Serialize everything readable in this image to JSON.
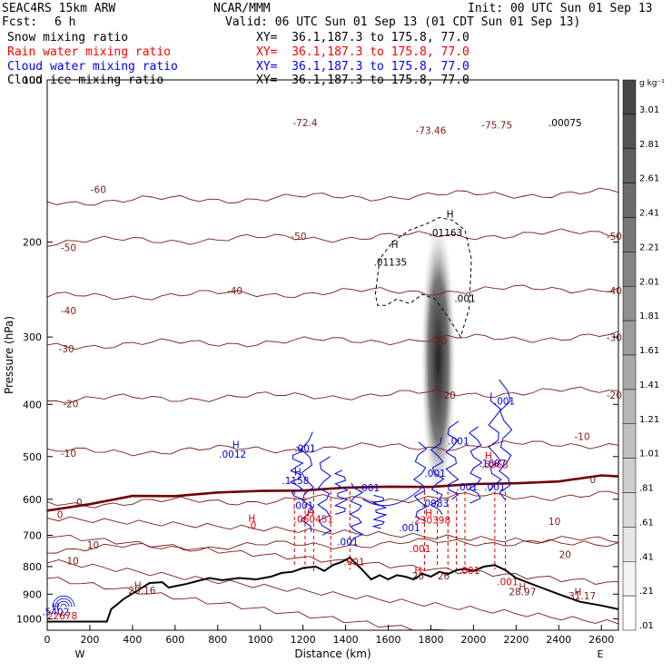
{
  "header": {
    "model": "SEAC4RS 15km ARW",
    "org": "NCAR/MMM",
    "init": "Init: 00 UTC Sun 01 Sep 13",
    "fcst_label": "Fcst:",
    "fcst_value": "6 h",
    "valid": "Valid: 06 UTC Sun 01 Sep 13 (01 CDT Sun 01 Sep 13)"
  },
  "legend_rows": [
    {
      "label": "Snow mixing ratio",
      "xy": "XY=  36.1,187.3 to 175.8, 77.0",
      "color": "#000000"
    },
    {
      "label": "Rain water mixing ratio",
      "xy": "XY=  36.1,187.3 to 175.8, 77.0",
      "color": "#ff0000"
    },
    {
      "label": "Cloud water mixing ratio",
      "xy": "XY=  36.1,187.3 to 175.8, 77.0",
      "color": "#0000ff"
    },
    {
      "label": "Cloud ice mixing ratio",
      "xy": "XY=  36.1,187.3 to 175.8, 77.0",
      "color": "#000000"
    }
  ],
  "colors": {
    "temperature": "#7a1a1a",
    "freezing_level": "#6e0000",
    "terrain": "#000000",
    "rain": "#e00000",
    "cloud_water": "#0000dd",
    "cloud_ice": "#000000"
  },
  "chart_data": {
    "type": "heatmap",
    "xlabel": "Distance (km)",
    "ylabel": "Pressure (hPa)",
    "xlim": [
      0,
      2680
    ],
    "ylim": [
      1050,
      100
    ],
    "y_log": true,
    "x_ticks": [
      "0",
      "200",
      "400",
      "600",
      "800",
      "1000",
      "1200",
      "1400",
      "1600",
      "1800",
      "2000",
      "2200",
      "2400",
      "2600"
    ],
    "y_ticks": [
      "100",
      "200",
      "300",
      "400",
      "500",
      "600",
      "700",
      "800",
      "900",
      "1000"
    ],
    "end_labels": {
      "left": "W",
      "right": "E"
    },
    "colorbar": {
      "unit": "g kg⁻¹",
      "levels": [
        "3.01",
        "2.81",
        "2.61",
        "2.41",
        "2.21",
        "2.01",
        "1.81",
        "1.61",
        "1.41",
        "1.21",
        "1.01",
        ".81",
        ".61",
        ".41",
        ".21",
        ".01"
      ]
    },
    "snow_max": {
      "x": 1835,
      "p": 330,
      "value": 3.0
    },
    "terrain": {
      "x": [
        0,
        280,
        300,
        360,
        420,
        480,
        540,
        570,
        600,
        650,
        700,
        760,
        820,
        900,
        980,
        1050,
        1100,
        1150,
        1200,
        1260,
        1300,
        1340,
        1380,
        1420,
        1470,
        1520,
        1560,
        1600,
        1640,
        1680,
        1720,
        1760,
        1800,
        1840,
        1880,
        1920,
        1960,
        2000,
        2050,
        2100,
        2150,
        2200,
        2300,
        2400,
        2500,
        2600,
        2680
      ],
      "p": [
        1012,
        1012,
        960,
        918,
        888,
        858,
        855,
        875,
        870,
        862,
        852,
        840,
        848,
        840,
        845,
        835,
        822,
        818,
        805,
        800,
        815,
        795,
        785,
        770,
        805,
        845,
        830,
        845,
        830,
        835,
        845,
        825,
        835,
        818,
        826,
        812,
        808,
        815,
        800,
        795,
        812,
        840,
        870,
        900,
        930,
        945,
        960
      ]
    },
    "temperature_isotherms": [
      {
        "label": "-60",
        "p": 165
      },
      {
        "label": "-50",
        "p": 196
      },
      {
        "label": "-40",
        "p": 248
      },
      {
        "label": "-30",
        "p": 305
      },
      {
        "label": "-20",
        "p": 385
      },
      {
        "label": "-10",
        "p": 482
      },
      {
        "label": "0",
        "p": 600
      },
      {
        "label": "10",
        "p": 728
      }
    ],
    "freezing_level": {
      "x": [
        0,
        200,
        400,
        600,
        800,
        1000,
        1200,
        1400,
        1600,
        1800,
        2000,
        2200,
        2400,
        2600,
        2680
      ],
      "p": [
        630,
        610,
        595,
        590,
        582,
        582,
        575,
        572,
        570,
        566,
        565,
        560,
        554,
        545,
        542
      ]
    },
    "annotations": [
      {
        "text": "-72.4",
        "x": 1210,
        "p": 122,
        "color": "#7a1a1a"
      },
      {
        "text": "-73.46",
        "x": 1800,
        "p": 126,
        "color": "#7a1a1a"
      },
      {
        "text": "-75.75",
        "x": 2110,
        "p": 123,
        "color": "#7a1a1a"
      },
      {
        "text": ".00075",
        "x": 2430,
        "p": 122,
        "color": "#000000"
      },
      {
        "text": "H",
        "x": 1890,
        "p": 180,
        "color": "#000000"
      },
      {
        "text": ".01163",
        "x": 1870,
        "p": 195,
        "color": "#000000"
      },
      {
        "text": "H",
        "x": 1630,
        "p": 205,
        "color": "#000000"
      },
      {
        "text": ".01135",
        "x": 1610,
        "p": 221,
        "color": "#000000"
      },
      {
        "text": ".001",
        "x": 1960,
        "p": 258,
        "color": "#000000"
      },
      {
        "text": "-10",
        "x": 2510,
        "p": 466,
        "color": "#7a1a1a"
      },
      {
        "text": "0",
        "x": 2560,
        "p": 560,
        "color": "#7a1a1a"
      },
      {
        "text": "H",
        "x": 885,
        "p": 482,
        "color": "#0000dd"
      },
      {
        "text": ".0012",
        "x": 870,
        "p": 502,
        "color": "#0000dd"
      },
      {
        "text": ".001",
        "x": 1210,
        "p": 490,
        "color": "#0000dd"
      },
      {
        "text": "H",
        "x": 1175,
        "p": 542,
        "color": "#0000dd"
      },
      {
        "text": ".1158",
        "x": 1165,
        "p": 562,
        "color": "#0000dd"
      },
      {
        "text": ".001",
        "x": 1510,
        "p": 580,
        "color": "#0000dd"
      },
      {
        "text": ".001",
        "x": 1200,
        "p": 625,
        "color": "#0000dd"
      },
      {
        "text": ".001",
        "x": 1410,
        "p": 730,
        "color": "#0000dd"
      },
      {
        "text": ".001",
        "x": 1700,
        "p": 688,
        "color": "#0000dd"
      },
      {
        "text": ".001",
        "x": 1820,
        "p": 545,
        "color": "#0000dd"
      },
      {
        "text": ".001",
        "x": 1930,
        "p": 475,
        "color": "#0000dd"
      },
      {
        "text": ".0983",
        "x": 1820,
        "p": 620,
        "color": "#0000dd"
      },
      {
        "text": ".001",
        "x": 1970,
        "p": 578,
        "color": "#0000dd"
      },
      {
        "text": ".001",
        "x": 2100,
        "p": 578,
        "color": "#0000dd"
      },
      {
        "text": ".1607",
        "x": 2090,
        "p": 522,
        "color": "#0000dd"
      },
      {
        "text": ".001",
        "x": 2145,
        "p": 400,
        "color": "#0000dd"
      },
      {
        "text": "H",
        "x": 2070,
        "p": 505,
        "color": "#e00000"
      },
      {
        "text": ".5363",
        "x": 2100,
        "p": 525,
        "color": "#e00000"
      },
      {
        "text": "H",
        "x": 1235,
        "p": 645,
        "color": "#e00000"
      },
      {
        "text": ".060451",
        "x": 1250,
        "p": 663,
        "color": "#e00000"
      },
      {
        "text": "H",
        "x": 960,
        "p": 660,
        "color": "#e00000"
      },
      {
        "text": ".0",
        "x": 960,
        "p": 680,
        "color": "#e00000"
      },
      {
        "text": "H",
        "x": 1790,
        "p": 645,
        "color": "#e00000"
      },
      {
        "text": ".230398",
        "x": 1800,
        "p": 665,
        "color": "#e00000"
      },
      {
        "text": ".001",
        "x": 1750,
        "p": 752,
        "color": "#e00000"
      },
      {
        "text": ".001",
        "x": 1440,
        "p": 795,
        "color": "#e00000"
      },
      {
        "text": ".001",
        "x": 1980,
        "p": 825,
        "color": "#e00000"
      },
      {
        "text": ".001",
        "x": 2160,
        "p": 866,
        "color": "#e00000"
      },
      {
        "text": "H",
        "x": 1740,
        "p": 825,
        "color": "#e00000"
      },
      {
        "text": "26",
        "x": 1740,
        "p": 845,
        "color": "#7a1a1a"
      },
      {
        "text": "26",
        "x": 1860,
        "p": 845,
        "color": "#7a1a1a"
      },
      {
        "text": "H",
        "x": 2230,
        "p": 885,
        "color": "#7a1a1a"
      },
      {
        "text": "28.97",
        "x": 2230,
        "p": 905,
        "color": "#7a1a1a"
      },
      {
        "text": "H",
        "x": 425,
        "p": 880,
        "color": "#7a1a1a"
      },
      {
        "text": "29.16",
        "x": 445,
        "p": 899,
        "color": "#7a1a1a"
      },
      {
        "text": "H",
        "x": 2490,
        "p": 905,
        "color": "#7a1a1a"
      },
      {
        "text": "31.17",
        "x": 2510,
        "p": 920,
        "color": "#7a1a1a"
      },
      {
        "text": "H",
        "x": 40,
        "p": 965,
        "color": "#0000dd"
      },
      {
        "text": ".5402",
        "x": 40,
        "p": 985,
        "color": "#0000dd"
      },
      {
        "text": "22678",
        "x": 70,
        "p": 1003,
        "color": "#e00000"
      },
      {
        "text": "-40",
        "x": 100,
        "p": 272,
        "color": "#7a1a1a"
      },
      {
        "text": "-50",
        "x": 100,
        "p": 208,
        "color": "#7a1a1a"
      },
      {
        "text": "-60",
        "x": 240,
        "p": 162,
        "color": "#7a1a1a"
      },
      {
        "text": "-30",
        "x": 90,
        "p": 320,
        "color": "#7a1a1a"
      },
      {
        "text": "-20",
        "x": 110,
        "p": 405,
        "color": "#7a1a1a"
      },
      {
        "text": "-10",
        "x": 100,
        "p": 500,
        "color": "#7a1a1a"
      },
      {
        "text": "0",
        "x": 150,
        "p": 617,
        "color": "#7a1a1a"
      },
      {
        "text": "0",
        "x": 60,
        "p": 650,
        "color": "#7a1a1a"
      },
      {
        "text": "10",
        "x": 215,
        "p": 740,
        "color": "#7a1a1a"
      },
      {
        "text": "10",
        "x": 120,
        "p": 793,
        "color": "#7a1a1a"
      },
      {
        "text": "10",
        "x": 2380,
        "p": 670,
        "color": "#7a1a1a"
      },
      {
        "text": "20",
        "x": 2430,
        "p": 772,
        "color": "#7a1a1a"
      },
      {
        "text": "-20",
        "x": 2660,
        "p": 390,
        "color": "#7a1a1a"
      },
      {
        "text": "-30",
        "x": 2660,
        "p": 305,
        "color": "#7a1a1a"
      },
      {
        "text": "-40",
        "x": 2660,
        "p": 250,
        "color": "#7a1a1a"
      },
      {
        "text": "-50",
        "x": 2660,
        "p": 198,
        "color": "#7a1a1a"
      },
      {
        "text": "-40",
        "x": 880,
        "p": 250,
        "color": "#7a1a1a"
      },
      {
        "text": "-50",
        "x": 1180,
        "p": 198,
        "color": "#7a1a1a"
      },
      {
        "text": "-30",
        "x": 1840,
        "p": 310,
        "color": "#7a1a1a"
      },
      {
        "text": "-20",
        "x": 1880,
        "p": 390,
        "color": "#7a1a1a"
      }
    ]
  }
}
